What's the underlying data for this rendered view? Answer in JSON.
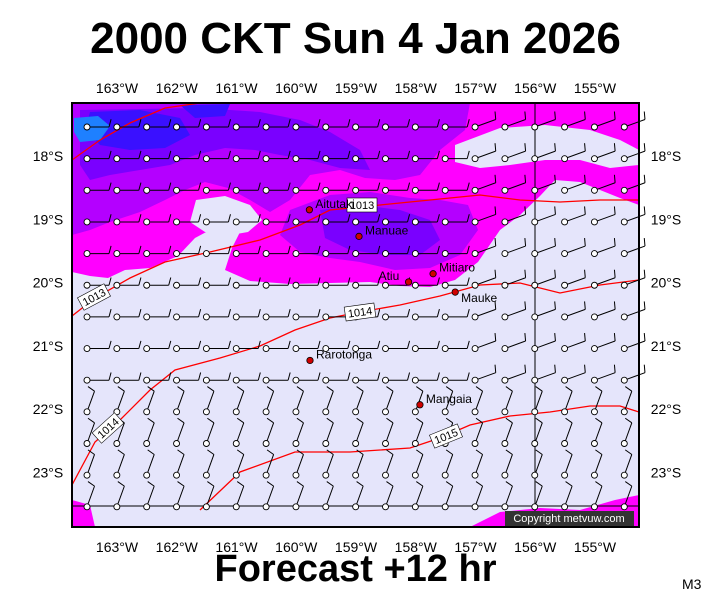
{
  "title": "2000 CKT Sun 4 Jan 2026",
  "footer": "Forecast +12 hr",
  "model": "M3",
  "copyright": "Copyright metvuw.com",
  "lon_labels": [
    "163°W",
    "162°W",
    "161°W",
    "160°W",
    "159°W",
    "158°W",
    "157°W",
    "156°W",
    "155°W"
  ],
  "lat_labels": [
    "18°S",
    "19°S",
    "20°S",
    "21°S",
    "22°S",
    "23°S"
  ],
  "places": [
    {
      "name": "Aitutaki",
      "lon": -159.78,
      "lat": -18.85
    },
    {
      "name": "Manuae",
      "lon": -158.95,
      "lat": -19.27
    },
    {
      "name": "Atiu",
      "lon": -158.12,
      "lat": -19.99
    },
    {
      "name": "Mitiaro",
      "lon": -157.71,
      "lat": -19.86
    },
    {
      "name": "Mauke",
      "lon": -157.34,
      "lat": -20.15
    },
    {
      "name": "Rarotonga",
      "lon": -159.77,
      "lat": -21.23
    },
    {
      "name": "Mangaia",
      "lon": -157.93,
      "lat": -21.93
    }
  ],
  "isobars": [
    {
      "label": "1013"
    },
    {
      "label": "1013"
    },
    {
      "label": "1014"
    },
    {
      "label": "1014"
    },
    {
      "label": "1015"
    }
  ],
  "colors": {
    "background": "#e5e5fb",
    "rain_light": "#ff00ff",
    "rain_mid": "#b400ff",
    "rain_heavy": "#7a00ff",
    "rain_heavier": "#3a10ff",
    "rain_max": "#1e80ff",
    "isobar": "#ff0000",
    "place_dot": "#d00000"
  }
}
